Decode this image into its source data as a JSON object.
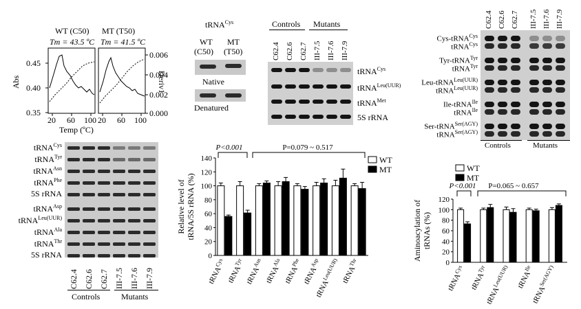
{
  "melt": {
    "wt": {
      "label": "WT (C50)",
      "tm": "Tm = 43.5 ºC"
    },
    "mt": {
      "label": "MT (T50)",
      "tm": "Tm = 41.5 ºC"
    },
    "y_left_label": "Abs",
    "y_right_label": "Deriv1",
    "x_label": "Temp (ºC)",
    "left_ticks": [
      "0.45",
      "0.40",
      "0.35"
    ],
    "right_ticks": [
      "0.006",
      "0.004",
      "0.002",
      "0.000"
    ],
    "x_ticks": [
      "20",
      "60",
      "100"
    ]
  },
  "native_gel": {
    "title_base": "tRNA",
    "title_sup": "Cys",
    "lane1": [
      "WT",
      "(C50)"
    ],
    "lane2": [
      "MT",
      "(T50)"
    ],
    "native_label": "Native",
    "denatured_label": "Denatured"
  },
  "northern": {
    "controls_label": "Controls",
    "mutants_label": "Mutants",
    "lanes": [
      "C62.4",
      "C62.6",
      "C62.7",
      "III-7.5",
      "III-7.6",
      "III-7.9"
    ],
    "rows": [
      {
        "base": "tRNA",
        "sup": "Cys"
      },
      {
        "base": "tRNA",
        "sup": "Leu(UUR)"
      },
      {
        "base": "tRNA",
        "sup": "Met"
      },
      {
        "base": "5S rRNA",
        "sup": ""
      }
    ]
  },
  "left_blot": {
    "rows": [
      {
        "base": "tRNA",
        "sup": "Cys"
      },
      {
        "base": "tRNA",
        "sup": "Tyr"
      },
      {
        "base": "tRNA",
        "sup": "Asn"
      },
      {
        "base": "tRNA",
        "sup": "Phe"
      },
      {
        "base": "5S rRNA",
        "sup": ""
      },
      {
        "base": "tRNA",
        "sup": "Asp"
      },
      {
        "base": "tRNA",
        "sup": "Leu(UUR)"
      },
      {
        "base": "tRNA",
        "sup": "Ala"
      },
      {
        "base": "tRNA",
        "sup": "Thr"
      },
      {
        "base": "5S rRNA",
        "sup": ""
      }
    ],
    "lanes": [
      "C62.4",
      "C62.6",
      "C62.7",
      "III-7.5",
      "III-7.6",
      "III-7.9"
    ],
    "controls_label": "Controls",
    "mutants_label": "Mutants"
  },
  "aminoacyl_blot": {
    "lanes": [
      "C62.4",
      "C62.6",
      "C62.7",
      "III-7.5",
      "III-7.6",
      "III-7.9"
    ],
    "rows": [
      {
        "top": {
          "base": "Cys-tRNA",
          "sup": "Cys"
        },
        "bottom": {
          "base": "tRNA",
          "sup": "Cys"
        }
      },
      {
        "top": {
          "base": "Tyr-tRNA",
          "sup": "Tyr"
        },
        "bottom": {
          "base": "tRNA",
          "sup": "Tyr"
        }
      },
      {
        "top": {
          "base": "Leu-tRNA",
          "sup": "Leu(UUR)"
        },
        "bottom": {
          "base": "tRNA",
          "sup": "Leu(UUR)"
        }
      },
      {
        "top": {
          "base": "Ile-tRNA",
          "sup": "Ile"
        },
        "bottom": {
          "base": "tRNA",
          "sup": "Ile"
        }
      },
      {
        "top": {
          "base": "Ser-tRNA",
          "sup": "Ser(AGY)"
        },
        "bottom": {
          "base": "tRNA",
          "sup": "Ser(AGY)"
        }
      }
    ],
    "controls_label": "Controls",
    "mutants_label": "Mutants"
  },
  "chart_data": [
    {
      "type": "bar",
      "ylabel": "Relative level of tRNA/5S rRNA (%)",
      "ylim": [
        0,
        140
      ],
      "yticks": [
        "0",
        "20",
        "40",
        "60",
        "80",
        "100",
        "120",
        "140"
      ],
      "categories": [
        {
          "base": "tRNA",
          "sup": "Cys"
        },
        {
          "base": "tRNA",
          "sup": "Tyr"
        },
        {
          "base": "tRNA",
          "sup": "Asn"
        },
        {
          "base": "tRNA",
          "sup": "Ala"
        },
        {
          "base": "tRNA",
          "sup": "Phe"
        },
        {
          "base": "tRNA",
          "sup": "Asp"
        },
        {
          "base": "tRNA",
          "sup": "Leu(UUR)"
        },
        {
          "base": "tRNA",
          "sup": "Thr"
        }
      ],
      "series": [
        {
          "name": "WT",
          "values": [
            100,
            100,
            100,
            100,
            100,
            100,
            100,
            100
          ],
          "errors": [
            4,
            6,
            3,
            6,
            3,
            5,
            8,
            3
          ],
          "color": "#ffffff"
        },
        {
          "name": "MT",
          "values": [
            56,
            61,
            104,
            106,
            95,
            104,
            111,
            96
          ],
          "errors": [
            2,
            4,
            3,
            6,
            4,
            6,
            13,
            9
          ],
          "color": "#000000"
        }
      ],
      "annotations": [
        "P<0.001",
        "P=0.079 ~ 0.517"
      ],
      "legend": "top-right"
    },
    {
      "type": "bar",
      "ylabel": "Aminoacylation of tRNAs (%)",
      "ylim": [
        0,
        120
      ],
      "yticks": [
        "0",
        "20",
        "40",
        "60",
        "80",
        "100",
        "120"
      ],
      "categories": [
        {
          "base": "tRNA",
          "sup": "Cys"
        },
        {
          "base": "tRNA",
          "sup": "Tyr"
        },
        {
          "base": "tRNA",
          "sup": "Leu(UUR)"
        },
        {
          "base": "tRNA",
          "sup": "Ile"
        },
        {
          "base": "tRNA",
          "sup": "Ser(AGY)"
        }
      ],
      "series": [
        {
          "name": "WT",
          "values": [
            100,
            100,
            100,
            100,
            100
          ],
          "errors": [
            3,
            3,
            5,
            3,
            4
          ],
          "color": "#ffffff"
        },
        {
          "name": "MT",
          "values": [
            73,
            104,
            95,
            98,
            108
          ],
          "errors": [
            4,
            6,
            7,
            3,
            3
          ],
          "color": "#000000"
        }
      ],
      "annotations": [
        "P<0.001",
        "P=0.065 ~ 0.657"
      ],
      "legend": "top-left"
    }
  ]
}
